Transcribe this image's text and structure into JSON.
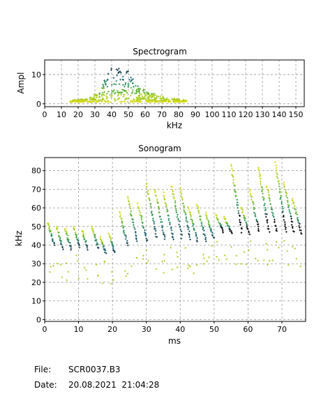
{
  "colors": {
    "ramp": [
      "#000000",
      "#0b3a4a",
      "#16606a",
      "#1e8a52",
      "#55b02e",
      "#a8cc1c",
      "#d2d810"
    ]
  },
  "chart_data": [
    {
      "type": "scatter",
      "title": "Spectrogram",
      "xlabel": "kHz",
      "ylabel": "Ampl",
      "xlim": [
        0,
        155
      ],
      "ylim": [
        -1,
        15
      ],
      "xticks": [
        0,
        10,
        20,
        30,
        40,
        50,
        60,
        70,
        80,
        90,
        100,
        110,
        120,
        130,
        140,
        150
      ],
      "yticks": [
        0,
        10
      ],
      "grid": true,
      "points_description": "amplitude vs frequency, dense cluster peaking ~13 near 40-50 kHz, spread 15-85 kHz near 1-3",
      "envelope": [
        [
          15,
          1.2
        ],
        [
          25,
          1.8
        ],
        [
          32,
          4
        ],
        [
          36,
          9
        ],
        [
          40,
          12.5
        ],
        [
          44,
          13.2
        ],
        [
          48,
          12.8
        ],
        [
          52,
          9.5
        ],
        [
          56,
          6
        ],
        [
          62,
          4
        ],
        [
          70,
          2.6
        ],
        [
          78,
          1.8
        ],
        [
          85,
          1.2
        ]
      ]
    },
    {
      "type": "scatter",
      "title": "Sonogram",
      "xlabel": "ms",
      "ylabel": "kHz",
      "xlim": [
        0,
        77
      ],
      "ylim": [
        -1,
        87
      ],
      "xticks": [
        0,
        10,
        20,
        30,
        40,
        50,
        60,
        70
      ],
      "yticks": [
        0,
        10,
        20,
        30,
        40,
        50,
        60,
        70,
        80
      ],
      "grid": true,
      "calls": [
        {
          "t": 1.0,
          "fmax": 52,
          "fmin": 40,
          "dur": 1.8
        },
        {
          "t": 3.5,
          "fmax": 50,
          "fmin": 38,
          "dur": 1.8
        },
        {
          "t": 6.0,
          "fmax": 49,
          "fmin": 38,
          "dur": 1.8
        },
        {
          "t": 8.5,
          "fmax": 50,
          "fmin": 39,
          "dur": 1.8
        },
        {
          "t": 11.0,
          "fmax": 48,
          "fmin": 38,
          "dur": 1.8
        },
        {
          "t": 14.0,
          "fmax": 50,
          "fmin": 38,
          "dur": 1.8
        },
        {
          "t": 16.5,
          "fmax": 44,
          "fmin": 36,
          "dur": 1.5
        },
        {
          "t": 19.0,
          "fmax": 46,
          "fmin": 36,
          "dur": 1.6
        },
        {
          "t": 22.0,
          "fmax": 58,
          "fmin": 40,
          "dur": 2.5
        },
        {
          "t": 24.5,
          "fmax": 66,
          "fmin": 42,
          "dur": 2.8
        },
        {
          "t": 27.5,
          "fmax": 62,
          "fmin": 42,
          "dur": 2.8
        },
        {
          "t": 30.0,
          "fmax": 73,
          "fmin": 44,
          "dur": 3.0
        },
        {
          "t": 32.5,
          "fmax": 70,
          "fmin": 43,
          "dur": 3.0
        },
        {
          "t": 35.0,
          "fmax": 68,
          "fmin": 43,
          "dur": 3.0
        },
        {
          "t": 37.5,
          "fmax": 72,
          "fmin": 44,
          "dur": 3.0
        },
        {
          "t": 40.0,
          "fmax": 70,
          "fmin": 43,
          "dur": 3.0
        },
        {
          "t": 42.5,
          "fmax": 60,
          "fmin": 42,
          "dur": 2.6
        },
        {
          "t": 45.0,
          "fmax": 62,
          "fmin": 42,
          "dur": 2.6
        },
        {
          "t": 47.5,
          "fmax": 57,
          "fmin": 44,
          "dur": 2.4
        },
        {
          "t": 50.5,
          "fmax": 56,
          "fmin": 47,
          "dur": 2.2
        },
        {
          "t": 53.0,
          "fmax": 55,
          "fmin": 46,
          "dur": 2.2
        },
        {
          "t": 55.0,
          "fmax": 83,
          "fmin": 47,
          "dur": 3.2
        },
        {
          "t": 58.0,
          "fmax": 60,
          "fmin": 46,
          "dur": 2.4
        },
        {
          "t": 60.5,
          "fmax": 70,
          "fmin": 47,
          "dur": 2.8
        },
        {
          "t": 63.0,
          "fmax": 82,
          "fmin": 47,
          "dur": 3.2
        },
        {
          "t": 65.5,
          "fmax": 72,
          "fmin": 47,
          "dur": 3.0
        },
        {
          "t": 68.0,
          "fmax": 84,
          "fmin": 47,
          "dur": 3.2
        },
        {
          "t": 70.5,
          "fmax": 74,
          "fmin": 47,
          "dur": 3.0
        },
        {
          "t": 73.0,
          "fmax": 65,
          "fmin": 46,
          "dur": 2.8
        }
      ]
    }
  ],
  "footer": {
    "file_label": "File:",
    "file_value": "SCR0037.B3",
    "date_label": "Date:",
    "date_value": "20.08.2021  21:04:28"
  }
}
